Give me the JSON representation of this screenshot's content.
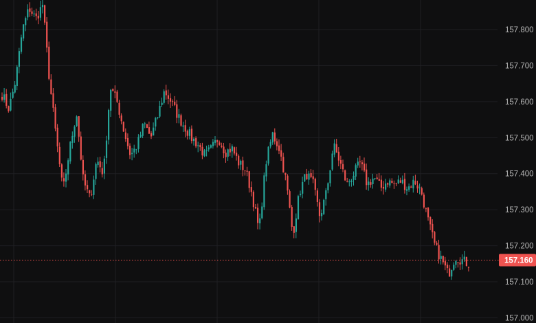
{
  "chart_data": {
    "type": "candlestick",
    "y_ticks": [
      "157.800",
      "157.700",
      "157.600",
      "157.500",
      "157.400",
      "157.300",
      "157.200",
      "157.100",
      "157.000"
    ],
    "ylim": [
      157.0,
      157.885
    ],
    "current_price": 157.16,
    "current_price_label": "157.160",
    "colors": {
      "background": "#0f0f10",
      "up": "#26a69a",
      "down": "#ef5350",
      "grid": "#1f1f22",
      "price_line": "#ef5350",
      "axis_text": "#b6b6b6"
    },
    "grid": true,
    "close_path": [
      157.62,
      157.58,
      157.66,
      157.8,
      157.86,
      157.83,
      157.87,
      157.66,
      157.5,
      157.35,
      157.47,
      157.57,
      157.38,
      157.33,
      157.44,
      157.4,
      157.64,
      157.6,
      157.52,
      157.45,
      157.48,
      157.54,
      157.5,
      157.56,
      157.63,
      157.6,
      157.56,
      157.53,
      157.5,
      157.48,
      157.45,
      157.47,
      157.5,
      157.46,
      157.47,
      157.43,
      157.41,
      157.34,
      157.24,
      157.43,
      157.51,
      157.47,
      157.38,
      157.23,
      157.35,
      157.4,
      157.37,
      157.28,
      157.35,
      157.48,
      157.43,
      157.37,
      157.4,
      157.43,
      157.37,
      157.39,
      157.36,
      157.38,
      157.37,
      157.38,
      157.36,
      157.38,
      157.35,
      157.27,
      157.2,
      157.16,
      157.12,
      157.17,
      157.16,
      157.15
    ]
  }
}
